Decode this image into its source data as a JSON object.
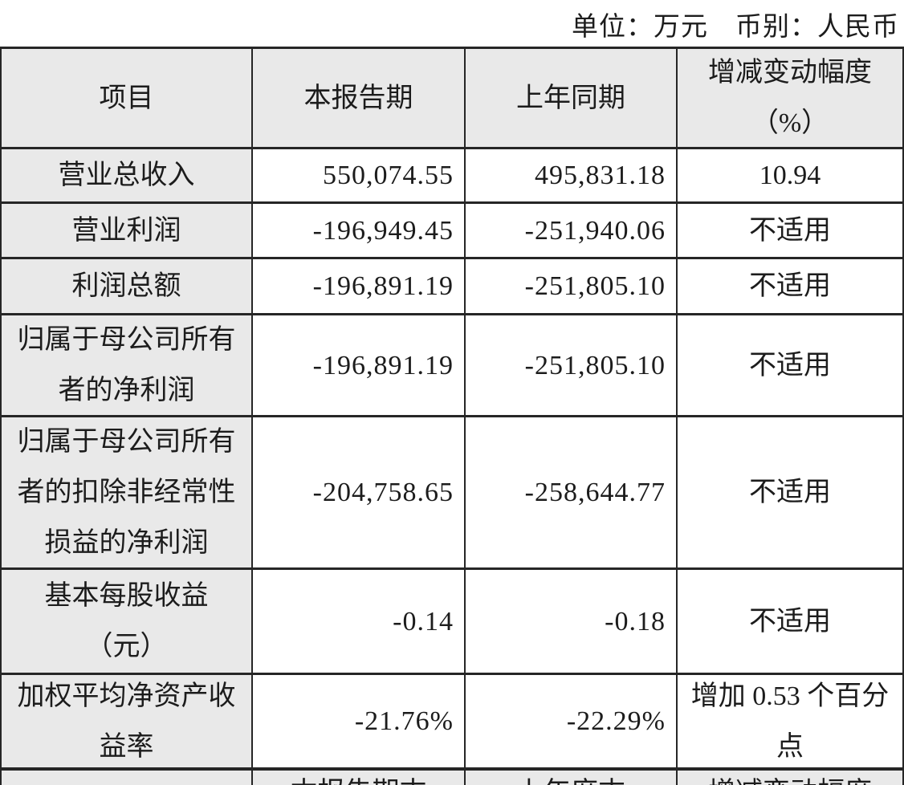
{
  "note": {
    "unit": "单位：万元",
    "currency": "币别：人民币"
  },
  "colors": {
    "border": "#262626",
    "shaded_bg": "#e9e9e9",
    "text": "#1c1c1c"
  },
  "table": {
    "headers": {
      "item": "项目",
      "current": "本报告期",
      "prior": "上年同期",
      "change": "增减变动幅度\n（%）"
    },
    "rows": [
      {
        "item": "营业总收入",
        "current": "550,074.55",
        "prior": "495,831.18",
        "change": "10.94"
      },
      {
        "item": "营业利润",
        "current": "-196,949.45",
        "prior": "-251,940.06",
        "change": "不适用"
      },
      {
        "item": "利润总额",
        "current": "-196,891.19",
        "prior": "-251,805.10",
        "change": "不适用"
      },
      {
        "item": "归属于母公司所有\n者的净利润",
        "current": "-196,891.19",
        "prior": "-251,805.10",
        "change": "不适用"
      },
      {
        "item": "归属于母公司所有\n者的扣除非经常性\n损益的净利润",
        "current": "-204,758.65",
        "prior": "-258,644.77",
        "change": "不适用"
      },
      {
        "item": "基本每股收益\n（元）",
        "current": "-0.14",
        "prior": "-0.18",
        "change": "不适用"
      },
      {
        "item": "加权平均净资产收\n益率",
        "current": "-21.76%",
        "prior": "-22.29%",
        "change": "增加 0.53 个百分\n点"
      }
    ],
    "next_section_partial": {
      "item": "",
      "current": "本报告期末",
      "prior": "上年度末",
      "change": "增减变动幅度"
    }
  }
}
